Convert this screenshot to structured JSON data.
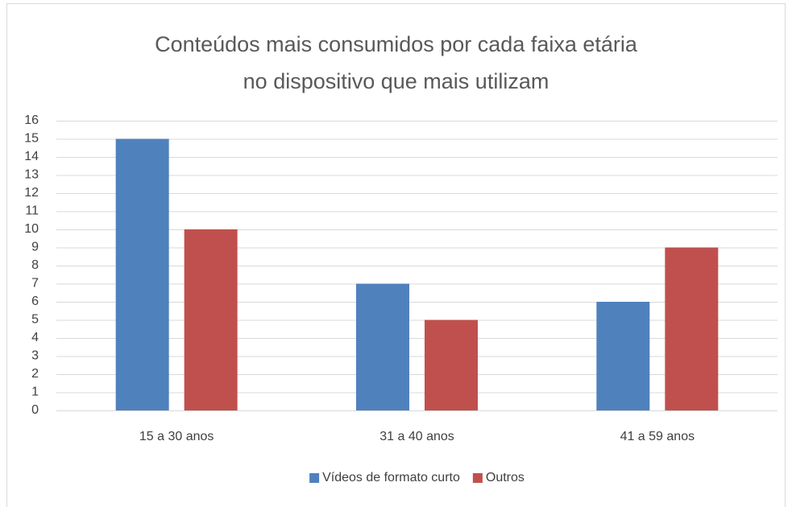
{
  "chart_data": {
    "type": "bar",
    "title": "Conteúdos mais consumidos por cada faixa etária no dispositivo que mais utilizam",
    "categories": [
      "15 a 30 anos",
      "31 a 40 anos",
      "41 a 59 anos"
    ],
    "series": [
      {
        "name": "Vídeos de formato curto",
        "color": "#4f81bd",
        "values": [
          15,
          7,
          6
        ]
      },
      {
        "name": "Outros",
        "color": "#c0504d",
        "values": [
          10,
          5,
          9
        ]
      }
    ],
    "ylim": [
      0,
      16
    ],
    "yticks": [
      0,
      1,
      2,
      3,
      4,
      5,
      6,
      7,
      8,
      9,
      10,
      11,
      12,
      13,
      14,
      15,
      16
    ],
    "grid": true,
    "legend": "bottom"
  }
}
